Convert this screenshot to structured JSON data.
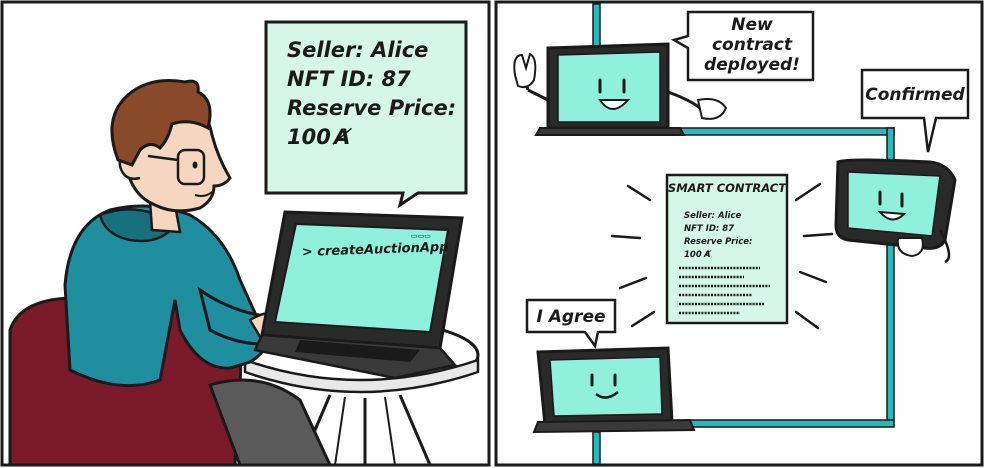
{
  "panel_left": {
    "speech_bubble": {
      "line1": "Seller: Alice",
      "line2": "NFT ID: 87",
      "line3": "Reserve Price:",
      "line4": "100",
      "currency_glyph": "Ⱥ"
    },
    "laptop_screen": {
      "command": "> createAuctionApp",
      "battery_label": "▭▭▭"
    }
  },
  "panel_right": {
    "top_bubble": {
      "line1": "New",
      "line2": "contract",
      "line3": "deployed!"
    },
    "right_bubble": {
      "text": "Confirmed"
    },
    "bottom_bubble": {
      "text": "I Agree"
    },
    "contract": {
      "title": "SMART CONTRACT",
      "line1": "Seller: Alice",
      "line2": "NFT ID: 87",
      "line3": "Reserve Price:",
      "line4": "100"
    }
  },
  "colors": {
    "mint": "#d6f7e8",
    "screen": "#8ff0dc",
    "teal_line": "#2ab8bf",
    "hoodie": "#1f8fa0",
    "chair": "#7a1a2a",
    "skin": "#f5d6c0",
    "hair": "#8a4a2a",
    "ink": "#1a1a1a"
  }
}
